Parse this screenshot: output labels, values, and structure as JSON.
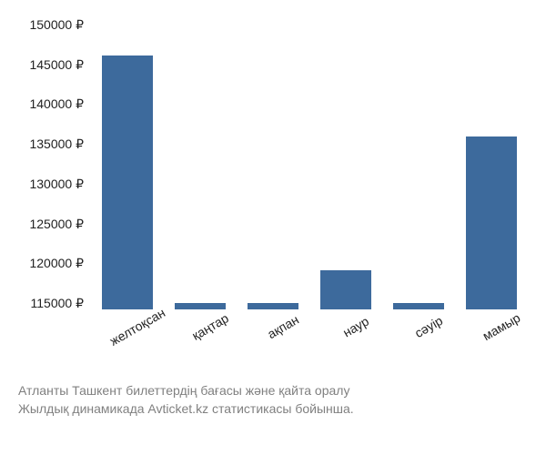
{
  "chart": {
    "type": "bar",
    "categories": [
      "желтоқсан",
      "қаңтар",
      "ақпан",
      "наур",
      "сәуір",
      "мамыр"
    ],
    "values": [
      145500,
      115800,
      115800,
      119700,
      115800,
      135800
    ],
    "bar_color": "#3d6a9c",
    "background_color": "#ffffff",
    "ylim": [
      115000,
      150000
    ],
    "ytick_step": 5000,
    "yticks": [
      150000,
      145000,
      140000,
      135000,
      130000,
      125000,
      120000,
      115000
    ],
    "ytick_labels": [
      "150000 ₽",
      "145000 ₽",
      "140000 ₽",
      "135000 ₽",
      "130000 ₽",
      "125000 ₽",
      "120000 ₽",
      "115000 ₽"
    ],
    "label_fontsize": 14,
    "label_color": "#222222",
    "bar_width": 0.7,
    "x_label_rotation": -30
  },
  "caption": {
    "line1": "Атланты Ташкент билеттердің бағасы және қайта оралу",
    "line2": "Жылдық динамикада Avticket.kz статистикасы бойынша.",
    "color": "#808080",
    "fontsize": 14
  }
}
